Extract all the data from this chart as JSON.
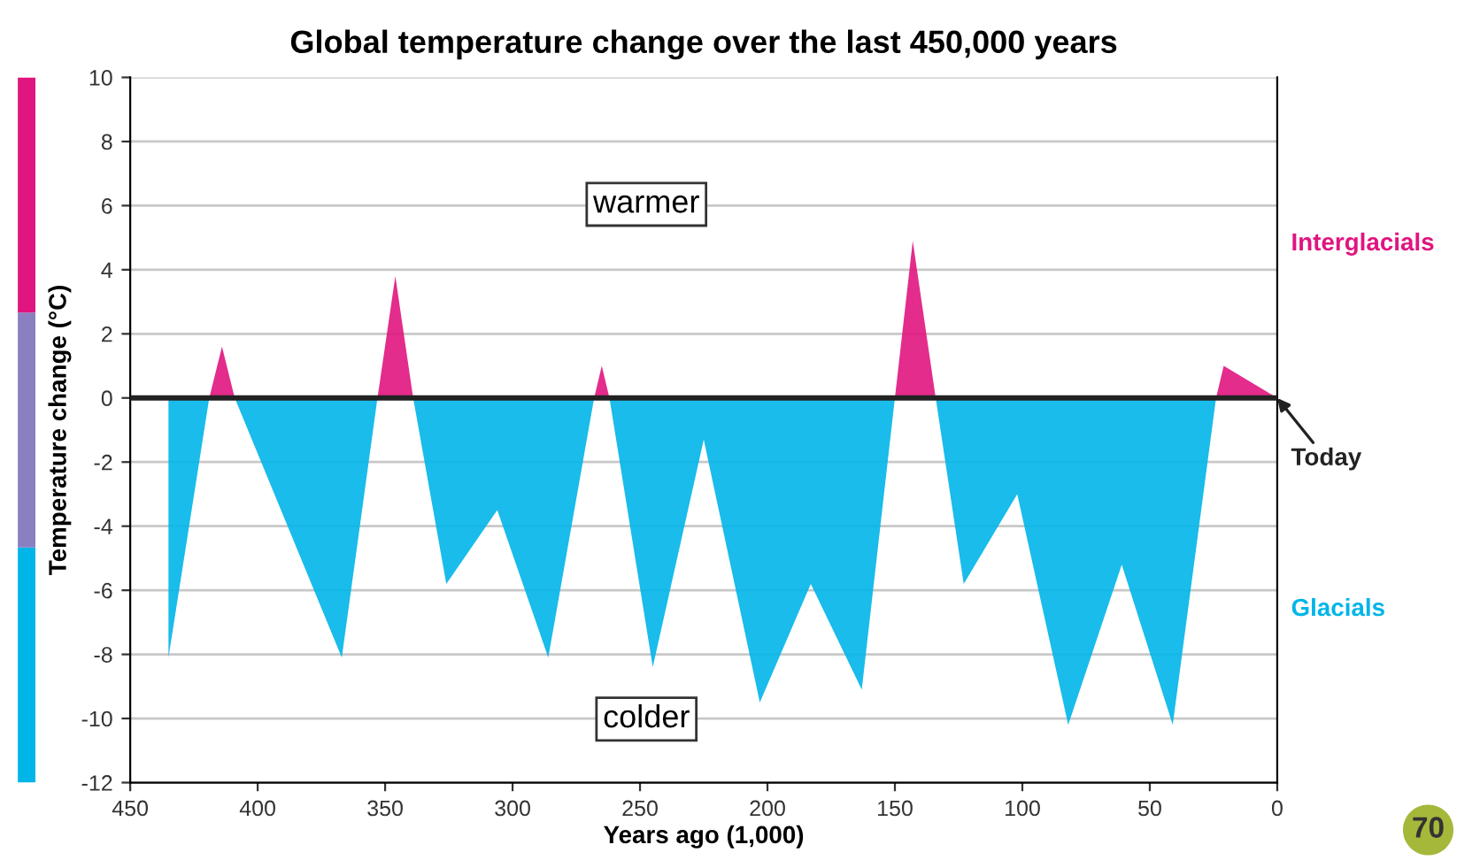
{
  "chart_data": {
    "type": "area",
    "title": "Global temperature change over the last 450,000 years",
    "xlabel": "Years ago (1,000)",
    "ylabel": "Temperature change (°C)",
    "series": [
      {
        "name": "Interglacials",
        "color": "#e0157f",
        "x": [
          419,
          414,
          409,
          353,
          346,
          339,
          268,
          265,
          262,
          150,
          143,
          134,
          24,
          21,
          0
        ],
        "values": [
          0,
          1.6,
          0,
          0,
          3.8,
          0,
          0,
          1.0,
          0,
          0,
          4.9,
          0,
          0,
          1.0,
          0
        ]
      },
      {
        "name": "Glacials",
        "color": "#00b5e8",
        "x": [
          435,
          435,
          419,
          409,
          367,
          353,
          339,
          326,
          306,
          286,
          268,
          262,
          245,
          225,
          203,
          183,
          163,
          150,
          134,
          123,
          102,
          82,
          61,
          41,
          24
        ],
        "values": [
          0,
          -8.1,
          0,
          0,
          -8.1,
          0,
          0,
          -5.8,
          -3.5,
          -8.1,
          0,
          0,
          -8.4,
          -1.3,
          -9.5,
          -5.8,
          -9.1,
          0,
          0,
          -5.8,
          -3.0,
          -10.2,
          -5.2,
          -10.2,
          0
        ]
      }
    ],
    "xlim": [
      450,
      0
    ],
    "xticks": [
      450,
      400,
      350,
      300,
      250,
      200,
      150,
      100,
      50,
      0
    ],
    "ylim": [
      -12,
      10
    ],
    "yticks": [
      -12,
      -10,
      -8,
      -6,
      -4,
      -2,
      0,
      2,
      4,
      6,
      8,
      10
    ],
    "grid": "y",
    "legend": false,
    "ref_lines": [
      {
        "axis": "y",
        "value": 0,
        "color": "#222222"
      }
    ],
    "annotations": [
      "warmer",
      "colder",
      {
        "text": "Today",
        "x": 0,
        "y": 0
      },
      "70"
    ]
  }
}
